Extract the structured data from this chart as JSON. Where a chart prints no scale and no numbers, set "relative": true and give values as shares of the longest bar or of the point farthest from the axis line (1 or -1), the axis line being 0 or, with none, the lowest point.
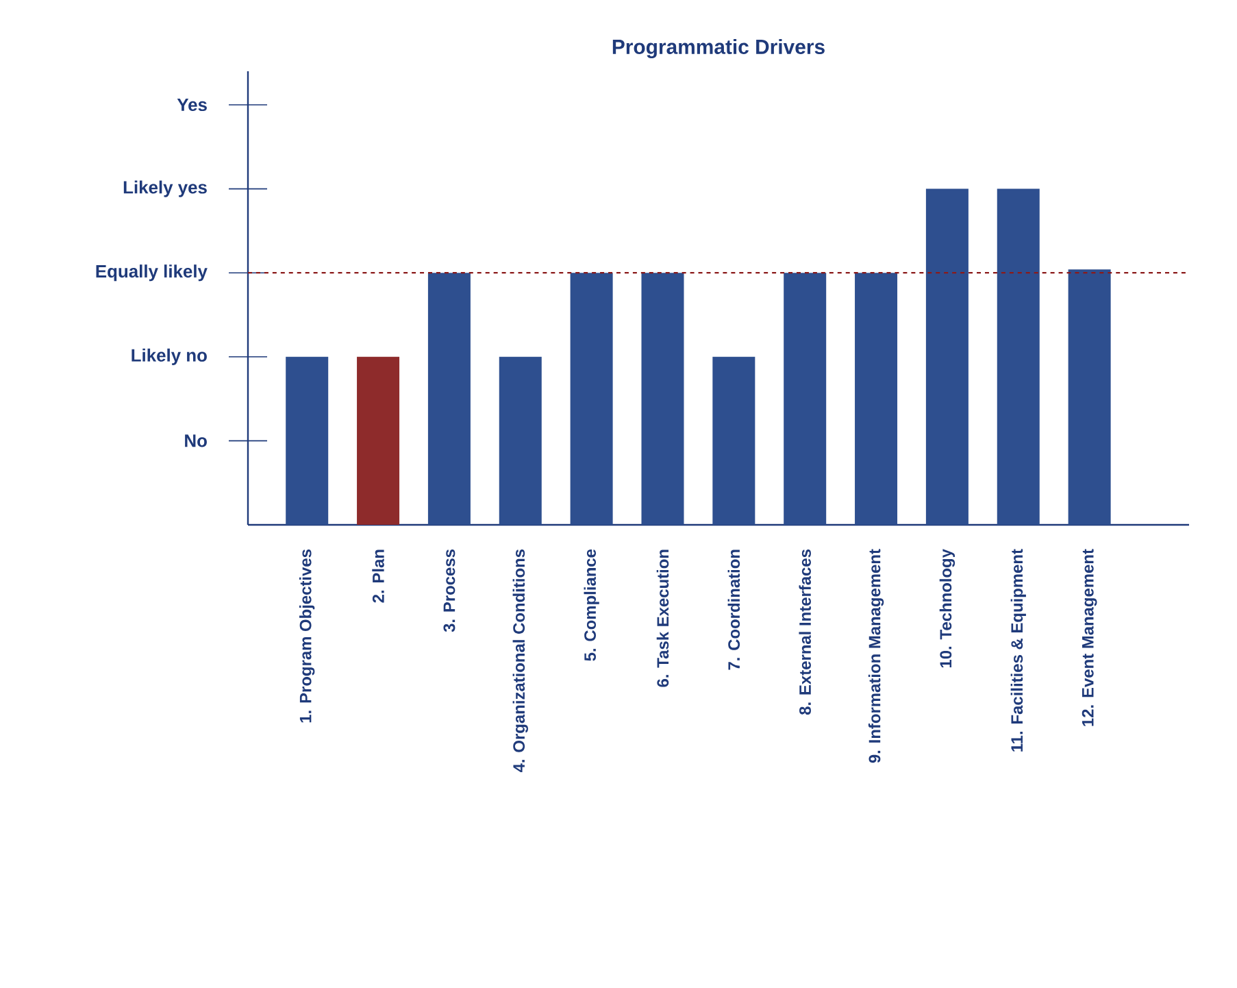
{
  "chart_data": {
    "type": "bar",
    "title": "Programmatic Drivers",
    "relative": true,
    "categories": [
      "1. Program Objectives",
      "2. Plan",
      "3. Process",
      "4. Organizational Conditions",
      "5. Compliance",
      "6. Task Execution",
      "7. Coordination",
      "8. External Interfaces",
      "9. Information Management",
      "10. Technology",
      "11. Facilities & Equipment",
      "12. Event Management"
    ],
    "values": [
      0.5,
      0.5,
      0.75,
      0.5,
      0.75,
      0.75,
      0.5,
      0.75,
      0.75,
      1,
      1,
      0.76
    ],
    "colors": [
      "#2e4f8f",
      "#8e2b2b",
      "#2e4f8f",
      "#2e4f8f",
      "#2e4f8f",
      "#2e4f8f",
      "#2e4f8f",
      "#2e4f8f",
      "#2e4f8f",
      "#2e4f8f",
      "#2e4f8f",
      "#2e4f8f"
    ],
    "annotations": [
      "No",
      "Likely no",
      "Equally likely",
      "Likely yes",
      "Yes"
    ],
    "ref_lines": [
      {
        "axis": "y",
        "value": 0.75,
        "color": "#8b1a1a",
        "line_style": "dashed"
      }
    ],
    "grid": false
  }
}
